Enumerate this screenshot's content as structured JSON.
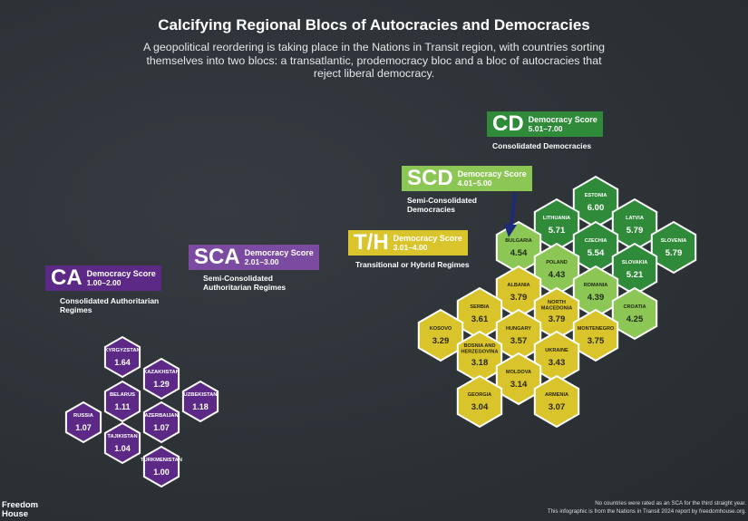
{
  "header": {
    "title": "Calcifying Regional Blocs of Autocracies and Democracies",
    "subtitle": "A geopolitical reordering is taking place in the Nations in Transit region, with countries sorting themselves into two blocs: a transatlantic, prodemocracy bloc and a bloc of autocracies that reject liberal democracy."
  },
  "legend": {
    "ca": {
      "abbr": "CA",
      "score_label": "Democracy Score",
      "range": "1.00–2.00",
      "category": "Consolidated Authoritarian Regimes",
      "color": "#5c2a86"
    },
    "sca": {
      "abbr": "SCA",
      "score_label": "Democracy Score",
      "range": "2.01–3.00",
      "category": "Semi-Consolidated Authoritarian Regimes",
      "color": "#7a4ba0"
    },
    "th": {
      "abbr": "T/H",
      "score_label": "Democracy Score",
      "range": "3.01–4.00",
      "category": "Transitional or Hybrid Regimes",
      "color": "#d9c42c"
    },
    "scd": {
      "abbr": "SCD",
      "score_label": "Democracy Score",
      "range": "4.01–5.00",
      "category": "Semi-Consolidated Democracies",
      "color": "#8cc655"
    },
    "cd": {
      "abbr": "CD",
      "score_label": "Democracy Score",
      "range": "5.01–7.00",
      "category": "Consolidated Democracies",
      "color": "#2f8a3a"
    }
  },
  "countries": [
    {
      "name": "KYRGYZSTAN",
      "score": "1.64",
      "bloc": "ca"
    },
    {
      "name": "KAZAKHSTAN",
      "score": "1.29",
      "bloc": "ca"
    },
    {
      "name": "BELARUS",
      "score": "1.11",
      "bloc": "ca"
    },
    {
      "name": "UZBEKISTAN",
      "score": "1.18",
      "bloc": "ca"
    },
    {
      "name": "RUSSIA",
      "score": "1.07",
      "bloc": "ca"
    },
    {
      "name": "AZERBAIJAN",
      "score": "1.07",
      "bloc": "ca"
    },
    {
      "name": "TAJIKISTAN",
      "score": "1.04",
      "bloc": "ca"
    },
    {
      "name": "TURKMENISTAN",
      "score": "1.00",
      "bloc": "ca"
    },
    {
      "name": "ESTONIA",
      "score": "6.00",
      "bloc": "cd"
    },
    {
      "name": "LITHUANIA",
      "score": "5.71",
      "bloc": "cd"
    },
    {
      "name": "LATVIA",
      "score": "5.79",
      "bloc": "cd"
    },
    {
      "name": "CZECHIA",
      "score": "5.54",
      "bloc": "cd"
    },
    {
      "name": "SLOVENIA",
      "score": "5.79",
      "bloc": "cd"
    },
    {
      "name": "SLOVAKIA",
      "score": "5.21",
      "bloc": "cd"
    },
    {
      "name": "BULGARIA",
      "score": "4.54",
      "bloc": "scd"
    },
    {
      "name": "POLAND",
      "score": "4.43",
      "bloc": "scd"
    },
    {
      "name": "ROMANIA",
      "score": "4.39",
      "bloc": "scd"
    },
    {
      "name": "CROATIA",
      "score": "4.25",
      "bloc": "scd"
    },
    {
      "name": "ALBANIA",
      "score": "3.79",
      "bloc": "th"
    },
    {
      "name": "SERBIA",
      "score": "3.61",
      "bloc": "th"
    },
    {
      "name": "NORTH MACEDONIA",
      "score": "3.79",
      "bloc": "th"
    },
    {
      "name": "KOSOVO",
      "score": "3.29",
      "bloc": "th"
    },
    {
      "name": "HUNGARY",
      "score": "3.57",
      "bloc": "th"
    },
    {
      "name": "MONTENEGRO",
      "score": "3.75",
      "bloc": "th"
    },
    {
      "name": "BOSNIA AND HERZEGOVINA",
      "score": "3.18",
      "bloc": "th"
    },
    {
      "name": "UKRAINE",
      "score": "3.43",
      "bloc": "th"
    },
    {
      "name": "MOLDOVA",
      "score": "3.14",
      "bloc": "th"
    },
    {
      "name": "GEORGIA",
      "score": "3.04",
      "bloc": "th"
    },
    {
      "name": "ARMENIA",
      "score": "3.07",
      "bloc": "th"
    }
  ],
  "footer": {
    "logo": "Freedom House",
    "note": "No countries were rated as an SCA for the third straight year.",
    "source": "This infographic is from the Nations in Transit 2024 report by freedomhouse.org."
  }
}
